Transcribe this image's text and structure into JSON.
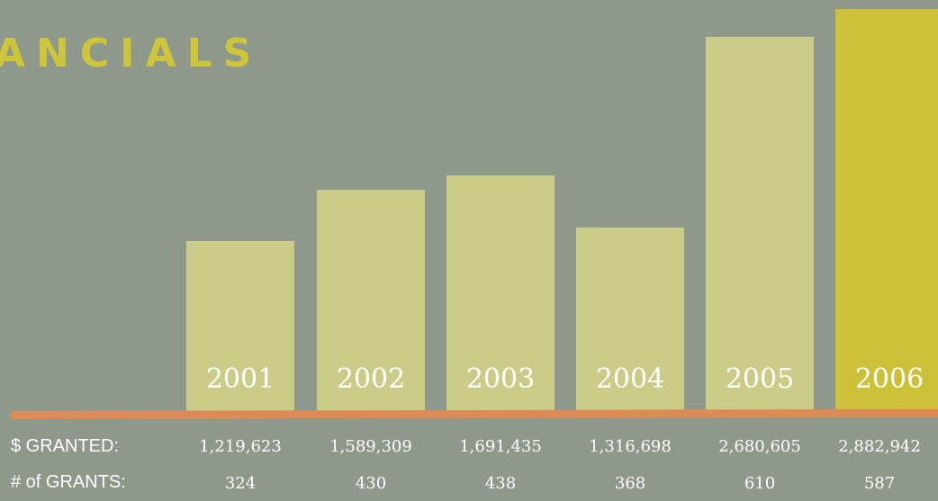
{
  "title": "ANCIALS",
  "chart_data": {
    "type": "bar",
    "categories": [
      "2001",
      "2002",
      "2003",
      "2004",
      "2005",
      "2006"
    ],
    "values": [
      1219623,
      1589309,
      1691435,
      1316698,
      2680605,
      2882942
    ],
    "highlight_category": "2006",
    "colors": {
      "bar": "#cbcc87",
      "highlight": "#ccc138",
      "axis_line": "#dd8a57",
      "background": "#8e998b",
      "title": "#cdc53a"
    },
    "title": "",
    "xlabel": "",
    "ylabel": ""
  },
  "table": {
    "rows": [
      {
        "label": "$ GRANTED:",
        "values": [
          "1,219,623",
          "1,589,309",
          "1,691,435",
          "1,316,698",
          "2,680,605",
          "2,882,942"
        ]
      },
      {
        "label": "# of GRANTS:",
        "values": [
          "324",
          "430",
          "438",
          "368",
          "610",
          "587"
        ]
      }
    ]
  }
}
